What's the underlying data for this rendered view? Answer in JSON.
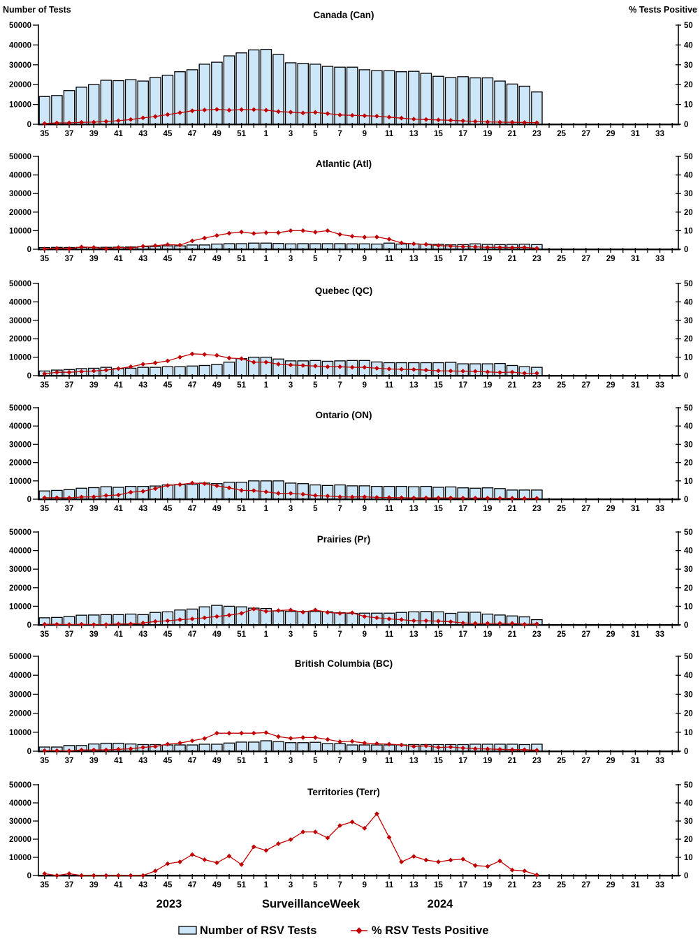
{
  "header": {
    "left_axis_title": "Number of Tests",
    "right_axis_title": "% Tests Positive"
  },
  "footer": {
    "year_left": "2023",
    "x_axis_label": "SurveillanceWeek",
    "year_right": "2024"
  },
  "legend": {
    "bars_label": "Number of RSV Tests",
    "line_label": "% RSV Tests Positive"
  },
  "colors": {
    "bar_fill": "#CDE7F8",
    "bar_stroke": "#000000",
    "line_color": "#C00000",
    "text_color": "#000000"
  },
  "axes": {
    "weeks": [
      35,
      36,
      37,
      38,
      39,
      40,
      41,
      42,
      43,
      44,
      45,
      46,
      47,
      48,
      49,
      50,
      51,
      52,
      1,
      2,
      3,
      4,
      5,
      6,
      7,
      8,
      9,
      10,
      11,
      12,
      13,
      14,
      15,
      16,
      17,
      18,
      19,
      20,
      21,
      22,
      23,
      24,
      25,
      26,
      27,
      28,
      29,
      30,
      31,
      32,
      33,
      34
    ],
    "labeled_weeks": [
      35,
      37,
      39,
      41,
      43,
      45,
      47,
      49,
      51,
      1,
      3,
      5,
      7,
      9,
      11,
      13,
      15,
      17,
      19,
      21,
      23,
      25,
      27,
      29,
      31,
      33
    ],
    "left_ticks": [
      0,
      10000,
      20000,
      30000,
      40000,
      50000
    ],
    "right_ticks": [
      0,
      10,
      20,
      30,
      40,
      50
    ],
    "left_max": 50000,
    "right_max": 50
  },
  "chart_data": [
    {
      "type": "bar+line",
      "title": "Canada (Can)",
      "xlabel": "SurveillanceWeek",
      "ylim_left": [
        0,
        50000
      ],
      "ylim_right": [
        0,
        50
      ],
      "series": [
        {
          "name": "Number of RSV Tests",
          "axis": "left",
          "type": "bar",
          "values": [
            14000,
            14500,
            17000,
            18700,
            20000,
            22200,
            22000,
            22500,
            21800,
            23600,
            24700,
            26500,
            27500,
            30300,
            31300,
            34500,
            36000,
            37500,
            37800,
            35200,
            31000,
            30700,
            30300,
            29200,
            28800,
            28800,
            27500,
            27000,
            27000,
            26500,
            26700,
            25700,
            24200,
            23500,
            24000,
            23400,
            23400,
            21800,
            20300,
            19200,
            16300
          ]
        },
        {
          "name": "% RSV Tests Positive",
          "axis": "right",
          "type": "line",
          "values": [
            0.4,
            0.7,
            0.7,
            1.0,
            1.1,
            1.4,
            1.8,
            2.4,
            3.2,
            3.9,
            4.9,
            5.8,
            6.8,
            7.2,
            7.5,
            7.1,
            7.4,
            7.4,
            7.1,
            6.4,
            6.1,
            5.7,
            6.0,
            5.4,
            4.7,
            4.5,
            4.3,
            4.1,
            3.6,
            3.1,
            2.6,
            2.4,
            2.2,
            2.0,
            1.7,
            1.4,
            1.2,
            1.1,
            1.0,
            0.9,
            0.8
          ]
        }
      ]
    },
    {
      "type": "bar+line",
      "title": "Atlantic (Atl)",
      "xlabel": "SurveillanceWeek",
      "ylim_left": [
        0,
        50000
      ],
      "ylim_right": [
        0,
        50
      ],
      "series": [
        {
          "name": "Number of RSV Tests",
          "axis": "left",
          "type": "bar",
          "values": [
            900,
            1000,
            950,
            1000,
            1000,
            1050,
            1100,
            1200,
            1400,
            1500,
            1800,
            1800,
            2300,
            2300,
            2800,
            3000,
            3000,
            3300,
            3300,
            3100,
            2900,
            3000,
            3000,
            3000,
            3000,
            2900,
            2900,
            2800,
            3300,
            2800,
            2900,
            2700,
            2600,
            2400,
            2500,
            2900,
            2600,
            2500,
            2600,
            2700,
            2500
          ]
        },
        {
          "name": "% RSV Tests Positive",
          "axis": "right",
          "type": "line",
          "values": [
            0.2,
            0.5,
            0.3,
            1.2,
            1.0,
            0.3,
            1.0,
            0.6,
            1.6,
            1.9,
            2.5,
            2.2,
            4.5,
            6.0,
            7.4,
            8.6,
            9.3,
            8.5,
            8.9,
            8.9,
            10.0,
            10.0,
            9.2,
            10.0,
            8.0,
            7.0,
            6.5,
            6.6,
            5.4,
            3.4,
            2.9,
            2.6,
            2.0,
            1.7,
            1.4,
            1.3,
            1.0,
            1.0,
            0.9,
            1.0,
            0.5
          ]
        }
      ]
    },
    {
      "type": "bar+line",
      "title": "Quebec (QC)",
      "xlabel": "SurveillanceWeek",
      "ylim_left": [
        0,
        50000
      ],
      "ylim_right": [
        0,
        50
      ],
      "series": [
        {
          "name": "Number of RSV Tests",
          "axis": "left",
          "type": "bar",
          "values": [
            2500,
            3000,
            3300,
            3800,
            4000,
            4500,
            3800,
            4000,
            4500,
            4500,
            4800,
            4800,
            5200,
            5500,
            6000,
            7300,
            9200,
            10000,
            10000,
            9000,
            8000,
            8000,
            8200,
            7800,
            8000,
            8200,
            8200,
            7400,
            7000,
            7000,
            7000,
            7000,
            7000,
            7200,
            6400,
            6400,
            6400,
            6600,
            5500,
            4800,
            4500
          ]
        },
        {
          "name": "% RSV Tests Positive",
          "axis": "right",
          "type": "line",
          "values": [
            1.0,
            1.8,
            1.8,
            2.2,
            2.5,
            3.0,
            3.8,
            4.8,
            6.2,
            6.9,
            8.0,
            10.0,
            11.8,
            11.5,
            11.0,
            9.5,
            9.2,
            7.3,
            7.3,
            6.2,
            5.8,
            5.5,
            5.2,
            4.8,
            4.8,
            4.5,
            4.5,
            4.0,
            3.6,
            3.4,
            3.3,
            3.0,
            2.6,
            2.5,
            2.4,
            2.3,
            2.0,
            1.7,
            1.9,
            1.3,
            1.3
          ]
        }
      ]
    },
    {
      "type": "bar+line",
      "title": "Ontario (ON)",
      "xlabel": "SurveillanceWeek",
      "ylim_left": [
        0,
        50000
      ],
      "ylim_right": [
        0,
        50
      ],
      "series": [
        {
          "name": "Number of RSV Tests",
          "axis": "left",
          "type": "bar",
          "values": [
            4500,
            4800,
            5200,
            6000,
            6300,
            6800,
            6500,
            7000,
            7000,
            7200,
            7800,
            8000,
            8200,
            8800,
            8500,
            9300,
            9300,
            10000,
            10000,
            10000,
            8800,
            8500,
            7800,
            7500,
            7800,
            7300,
            7300,
            7000,
            7000,
            7000,
            6800,
            7000,
            6500,
            6700,
            6200,
            6000,
            6200,
            5800,
            5000,
            5000,
            5000
          ]
        },
        {
          "name": "% RSV Tests Positive",
          "axis": "right",
          "type": "line",
          "values": [
            0.8,
            0.8,
            0.7,
            1.2,
            1.3,
            2.0,
            2.3,
            3.8,
            4.3,
            5.8,
            7.5,
            8.0,
            8.8,
            8.5,
            7.3,
            6.2,
            4.8,
            4.7,
            4.0,
            3.2,
            3.2,
            2.7,
            2.0,
            1.7,
            1.3,
            1.2,
            1.3,
            1.0,
            0.9,
            0.8,
            0.7,
            0.7,
            0.7,
            0.7,
            0.6,
            0.6,
            0.6,
            0.5,
            0.5,
            0.4,
            0.5
          ]
        }
      ]
    },
    {
      "type": "bar+line",
      "title": "Prairies (Pr)",
      "xlabel": "SurveillanceWeek",
      "ylim_left": [
        0,
        50000
      ],
      "ylim_right": [
        0,
        50
      ],
      "series": [
        {
          "name": "Number of RSV Tests",
          "axis": "left",
          "type": "bar",
          "values": [
            3800,
            4000,
            4500,
            5200,
            5300,
            5500,
            5500,
            5800,
            5500,
            6700,
            7000,
            8000,
            8500,
            9700,
            10500,
            10000,
            9700,
            9000,
            8800,
            7500,
            7200,
            7200,
            7200,
            7000,
            6500,
            6200,
            6300,
            6300,
            6300,
            6700,
            7000,
            7200,
            7000,
            6200,
            6800,
            6800,
            5800,
            5300,
            4800,
            4300,
            2800
          ]
        },
        {
          "name": "% RSV Tests Positive",
          "axis": "right",
          "type": "line",
          "values": [
            0.3,
            0.3,
            0.2,
            0.3,
            0.2,
            0.2,
            0.5,
            0.5,
            1.0,
            1.8,
            2.2,
            2.8,
            3.2,
            3.8,
            4.5,
            5.2,
            6.2,
            8.5,
            7.3,
            7.7,
            8.0,
            6.8,
            8.0,
            6.7,
            6.2,
            6.5,
            4.5,
            3.8,
            3.2,
            2.8,
            2.2,
            2.2,
            2.0,
            1.7,
            1.0,
            0.8,
            0.8,
            0.8,
            0.8,
            0.3,
            0.5
          ]
        }
      ]
    },
    {
      "type": "bar+line",
      "title": "British Columbia (BC)",
      "xlabel": "SurveillanceWeek",
      "ylim_left": [
        0,
        50000
      ],
      "ylim_right": [
        0,
        50
      ],
      "series": [
        {
          "name": "Number of RSV Tests",
          "axis": "left",
          "type": "bar",
          "values": [
            2200,
            2200,
            3000,
            3000,
            3800,
            4200,
            4200,
            3800,
            3500,
            3500,
            3300,
            3300,
            3300,
            3700,
            3700,
            4300,
            4800,
            4800,
            5500,
            5000,
            4500,
            4500,
            4700,
            4000,
            4000,
            3300,
            3300,
            3300,
            3300,
            3300,
            3500,
            3500,
            3500,
            3500,
            3500,
            3700,
            3700,
            3700,
            3700,
            3500,
            3700
          ]
        },
        {
          "name": "% RSV Tests Positive",
          "axis": "right",
          "type": "line",
          "values": [
            0.3,
            0.3,
            0.2,
            0.7,
            0.7,
            0.7,
            1.0,
            1.3,
            2.0,
            2.5,
            3.7,
            4.3,
            5.5,
            6.7,
            9.5,
            9.5,
            9.5,
            9.5,
            9.8,
            7.7,
            6.8,
            7.2,
            7.2,
            6.2,
            5.0,
            5.2,
            4.3,
            4.0,
            3.7,
            3.3,
            2.5,
            2.8,
            2.0,
            2.2,
            1.7,
            1.3,
            1.2,
            1.0,
            0.8,
            0.8,
            0.5
          ]
        }
      ]
    },
    {
      "type": "bar+line",
      "title": "Territories (Terr)",
      "xlabel": "SurveillanceWeek",
      "ylim_left": [
        0,
        50000
      ],
      "ylim_right": [
        0,
        50
      ],
      "series": [
        {
          "name": "Number of RSV Tests",
          "axis": "left",
          "type": "bar",
          "values": [
            50,
            50,
            50,
            50,
            50,
            50,
            50,
            50,
            50,
            50,
            50,
            50,
            50,
            50,
            50,
            50,
            50,
            50,
            50,
            50,
            50,
            50,
            50,
            50,
            50,
            50,
            50,
            50,
            50,
            50,
            50,
            50,
            50,
            50,
            50,
            50,
            50,
            50,
            50,
            50,
            50
          ]
        },
        {
          "name": "% RSV Tests Positive",
          "axis": "right",
          "type": "line",
          "values": [
            1.0,
            0.0,
            1.0,
            0.0,
            0.0,
            0.0,
            0.0,
            0.0,
            0.0,
            2.5,
            6.5,
            7.5,
            11.5,
            8.7,
            7.0,
            10.7,
            6.0,
            15.8,
            13.8,
            17.5,
            19.8,
            24.0,
            24.0,
            20.7,
            27.5,
            29.5,
            26.0,
            34.0,
            21.0,
            7.5,
            10.5,
            8.5,
            7.5,
            8.5,
            9.0,
            5.5,
            5.0,
            8.0,
            3.0,
            2.5,
            0.3
          ]
        }
      ]
    }
  ]
}
